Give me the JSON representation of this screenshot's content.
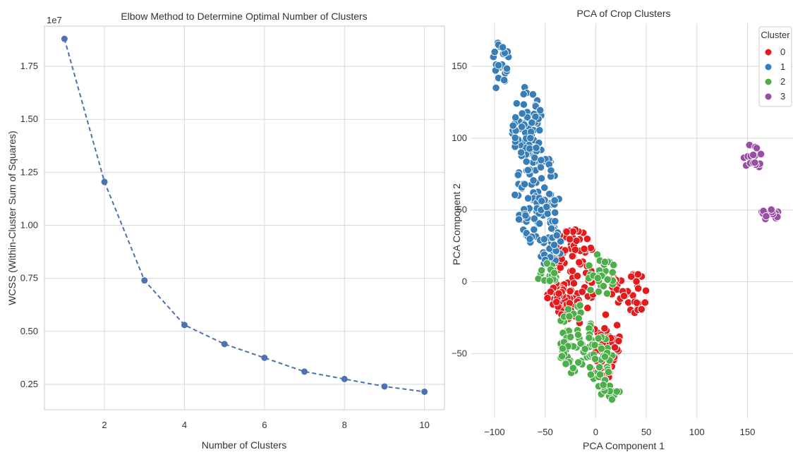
{
  "chart_data": [
    {
      "type": "line",
      "title": "Elbow Method to Determine Optimal Number of Clusters",
      "xlabel": "Number of Clusters",
      "ylabel": "WCSS (Within-Cluster Sum of Squares)",
      "scale_label": "1e7",
      "x": [
        1,
        2,
        3,
        4,
        5,
        6,
        7,
        8,
        9,
        10
      ],
      "series": [
        {
          "values": [
            1.88,
            1.205,
            0.74,
            0.53,
            0.44,
            0.375,
            0.31,
            0.275,
            0.24,
            0.215
          ]
        }
      ],
      "xlim": [
        0.5,
        10.5
      ],
      "ylim": [
        0.13,
        1.94
      ],
      "xticks": [
        2,
        4,
        6,
        8,
        10
      ],
      "yticks": [
        0.25,
        0.5,
        0.75,
        1.0,
        1.25,
        1.5,
        1.75
      ],
      "ytick_labels": [
        "0.25",
        "0.50",
        "0.75",
        "1.00",
        "1.25",
        "1.50",
        "1.75"
      ],
      "line_style": "dashed with circle markers",
      "color": "#4c72b0",
      "grid": true
    },
    {
      "type": "scatter",
      "title": "PCA of Crop Clusters",
      "xlabel": "PCA Component 1",
      "ylabel": "PCA Component 2",
      "xlim": [
        -123,
        195
      ],
      "ylim": [
        -95,
        180
      ],
      "xticks": [
        -100,
        -50,
        0,
        50,
        100,
        150
      ],
      "yticks": [
        -50,
        0,
        50,
        100,
        150
      ],
      "legend": {
        "title": "Cluster",
        "entries": [
          "0",
          "1",
          "2",
          "3"
        ],
        "placement": "top-right"
      },
      "grid": true,
      "series": [
        {
          "name": "0",
          "color": "#e41a1c",
          "regions": [
            {
              "cx": -22,
              "cy": 5,
              "rx": 22,
              "ry": 35
            },
            {
              "cx": 40,
              "cy": -8,
              "rx": 12,
              "ry": 14
            },
            {
              "cx": 10,
              "cy": -45,
              "rx": 14,
              "ry": 25
            },
            {
              "cx": -40,
              "cy": -10,
              "rx": 8,
              "ry": 10
            },
            {
              "cx": 22,
              "cy": -5,
              "rx": 7,
              "ry": 10
            }
          ]
        },
        {
          "name": "1",
          "color": "#377eb8",
          "regions": [
            {
              "cx": -58,
              "cy": 60,
              "rx": 22,
              "ry": 35
            },
            {
              "cx": -68,
              "cy": 110,
              "rx": 15,
              "ry": 28
            },
            {
              "cx": -94,
              "cy": 150,
              "rx": 10,
              "ry": 18
            },
            {
              "cx": -45,
              "cy": 25,
              "rx": 12,
              "ry": 15
            }
          ]
        },
        {
          "name": "2",
          "color": "#4daf4a",
          "regions": [
            {
              "cx": -20,
              "cy": -40,
              "rx": 18,
              "ry": 25
            },
            {
              "cx": 5,
              "cy": -55,
              "rx": 12,
              "ry": 18
            },
            {
              "cx": 12,
              "cy": -75,
              "rx": 12,
              "ry": 8
            },
            {
              "cx": -48,
              "cy": 5,
              "rx": 10,
              "ry": 8
            },
            {
              "cx": 5,
              "cy": 5,
              "rx": 15,
              "ry": 15
            }
          ]
        },
        {
          "name": "3",
          "color": "#984ea3",
          "regions": [
            {
              "cx": 155,
              "cy": 87,
              "rx": 10,
              "ry": 10
            },
            {
              "cx": 171,
              "cy": 47,
              "rx": 10,
              "ry": 5
            }
          ]
        }
      ]
    }
  ]
}
